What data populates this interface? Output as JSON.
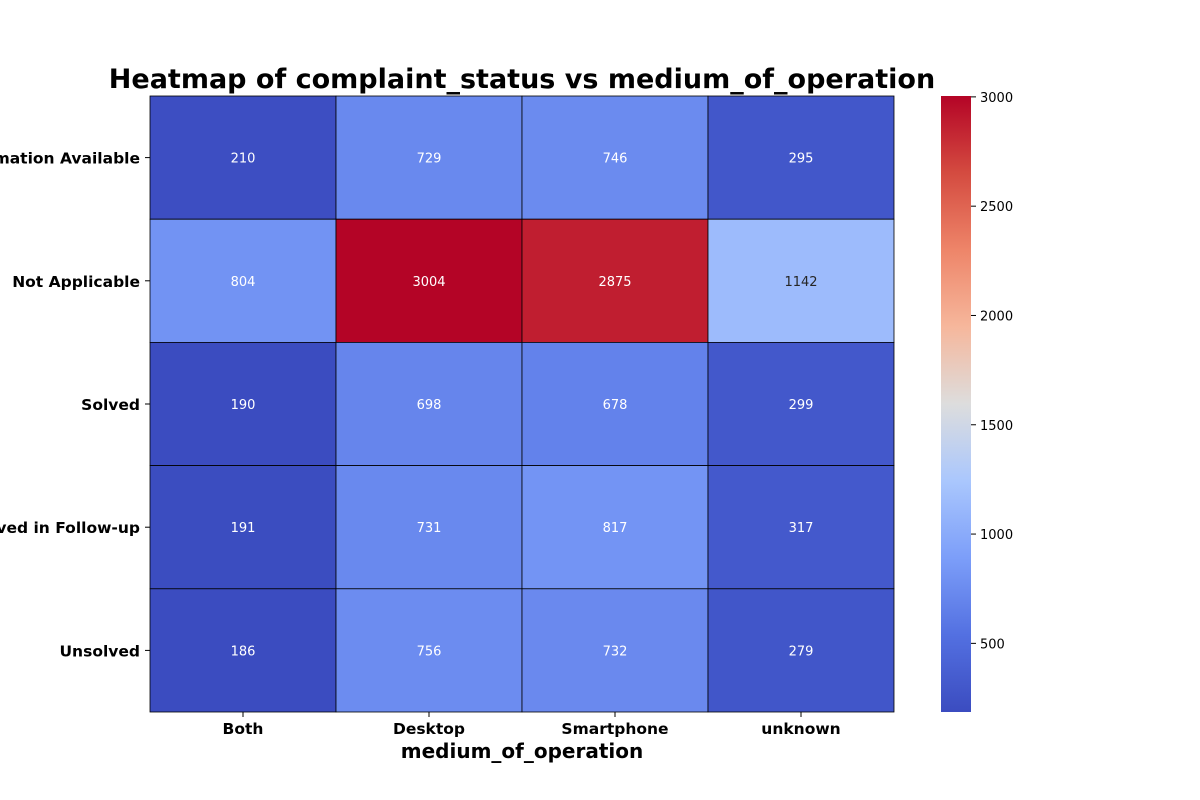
{
  "chart_data": {
    "type": "heatmap",
    "title": "Heatmap of complaint_status vs medium_of_operation",
    "xlabel": "medium_of_operation",
    "ylabel": "",
    "x_categories": [
      "Both",
      "Desktop",
      "Smartphone",
      "unknown"
    ],
    "y_categories": [
      "Information Available",
      "Not Applicable",
      "Solved",
      "Solved in Follow-up",
      "Unsolved"
    ],
    "values": [
      [
        210,
        729,
        746,
        295
      ],
      [
        804,
        3004,
        2875,
        1142
      ],
      [
        190,
        698,
        678,
        299
      ],
      [
        191,
        731,
        817,
        317
      ],
      [
        186,
        756,
        732,
        279
      ]
    ],
    "colormap": "coolwarm",
    "vmin": 186,
    "vmax": 3004,
    "colorbar_ticks": [
      500,
      1000,
      1500,
      2000,
      2500,
      3000
    ],
    "annotations": true,
    "cell_border_color": "#000000"
  }
}
